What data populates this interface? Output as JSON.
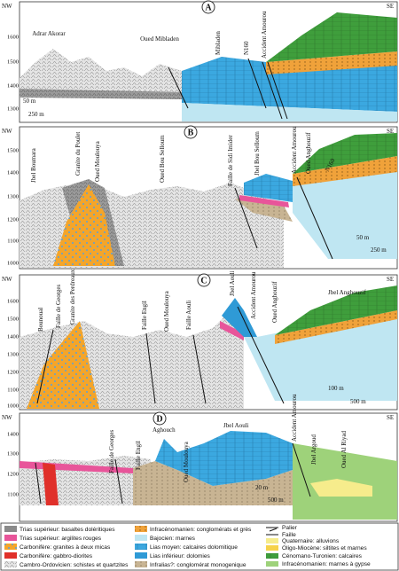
{
  "panels": [
    {
      "letter": "A",
      "left_corner": "NW",
      "right_corner": "SE",
      "elevations": [
        "1600",
        "1500",
        "1400",
        "1300"
      ],
      "labels": [
        "Adrar Akorar",
        "Oued Mibladen",
        "Mibladen",
        "N160",
        "Accident Amourou"
      ],
      "scale_vertical": "50 m",
      "scale_horizontal": "250 m"
    },
    {
      "letter": "B",
      "left_corner": "NW",
      "right_corner": "SE",
      "elevations": [
        "1500",
        "1400",
        "1300",
        "1200",
        "1100",
        "1000"
      ],
      "labels": [
        "Jbel Boumara",
        "Granite du Poulet",
        "Oued Moulouya",
        "Oued Bou Selloum",
        "Faille de Sidi Imider",
        "Jbel Bou Selloum",
        "Accident Amourou",
        "Oued Anghouzif",
        "N160"
      ],
      "scale_vertical": "50 m",
      "scale_horizontal": "250 m"
    },
    {
      "letter": "C",
      "left_corner": "NW",
      "right_corner": "SE",
      "elevations": [
        "1600",
        "1500",
        "1400",
        "1300",
        "1200",
        "1100",
        "1000"
      ],
      "labels": [
        "Bounoual",
        "Faille de Georges",
        "Granite des Perdreaux",
        "Faille Engil",
        "Oued Moulouya",
        "Faille Aouli",
        "Jbel Aouli",
        "Accident Amourou",
        "Oued Anghouzif",
        "Jbel Anghouzif"
      ],
      "scale_vertical": "100 m",
      "scale_horizontal": "500 m"
    },
    {
      "letter": "D",
      "left_corner": "NW",
      "right_corner": "SE",
      "elevations": [
        "1400",
        "1300",
        "1200",
        "1100"
      ],
      "labels": [
        "Faille de Georges",
        "Faille Engil",
        "Aghouch",
        "Oued Moulouya",
        "Jbel Aouli",
        "Accident Amourou",
        "Jbel Argoud",
        "Oued Al Riyad"
      ],
      "scale_vertical": "20 m",
      "scale_horizontal": "500 m"
    }
  ],
  "legend": [
    "Trias supérieur: basaltes doléritiques",
    "Trias supérieur: argilites rouges",
    "Carbonifère: granites à deux micas",
    "Carbonifère: gabbro-diorites",
    "Cambro-Ordovicien: schistes et quartzites",
    "Infracénomanien: conglomérats et grès",
    "Bajocien: marnes",
    "Lias moyen: calcaires dolomitique",
    "Lias inférieur: dolomies",
    "Infralias?: conglomérat monogenique",
    "Palier",
    "Faille",
    "Quaternaire: alluvions",
    "Oligo-Miocène: siltites et marnes",
    "Cénomano-Turonien: calcaires",
    "Infracénomanien: marnes à gypse"
  ]
}
